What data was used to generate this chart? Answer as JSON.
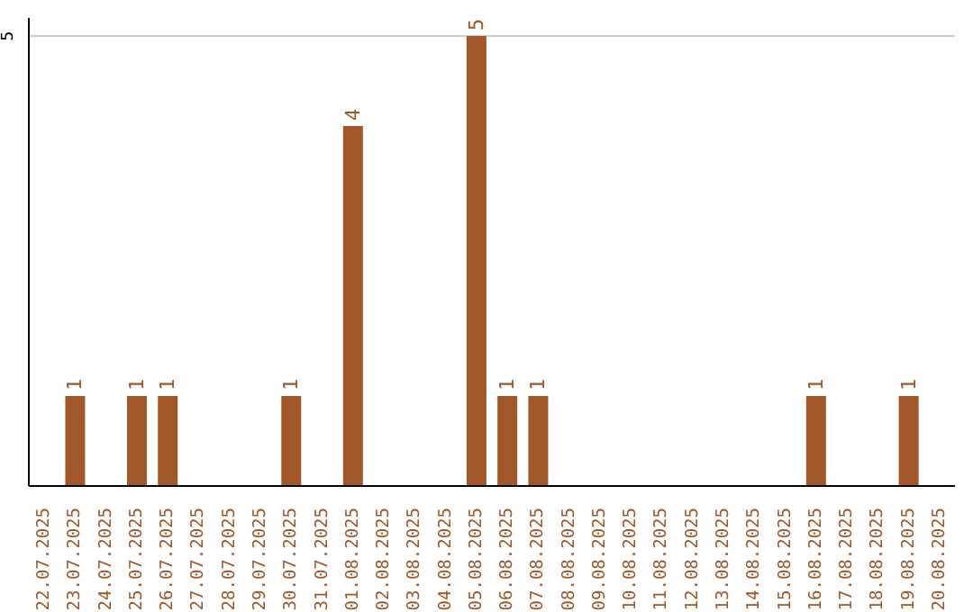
{
  "chart_data": {
    "type": "bar",
    "categories": [
      "22.07.2025",
      "23.07.2025",
      "24.07.2025",
      "25.07.2025",
      "26.07.2025",
      "27.07.2025",
      "28.07.2025",
      "29.07.2025",
      "30.07.2025",
      "31.07.2025",
      "01.08.2025",
      "02.08.2025",
      "03.08.2025",
      "04.08.2025",
      "05.08.2025",
      "06.08.2025",
      "07.08.2025",
      "08.08.2025",
      "09.08.2025",
      "10.08.2025",
      "11.08.2025",
      "12.08.2025",
      "13.08.2025",
      "14.08.2025",
      "15.08.2025",
      "16.08.2025",
      "17.08.2025",
      "18.08.2025",
      "19.08.2025",
      "20.08.2025"
    ],
    "values": [
      0,
      1,
      0,
      1,
      1,
      0,
      0,
      0,
      1,
      0,
      4,
      0,
      0,
      0,
      5,
      1,
      1,
      0,
      0,
      0,
      0,
      0,
      0,
      0,
      0,
      1,
      0,
      0,
      1,
      0
    ],
    "value_labels": [
      null,
      "1",
      null,
      "1",
      "1",
      null,
      null,
      null,
      "1",
      null,
      "4",
      null,
      null,
      null,
      "5",
      "1",
      "1",
      null,
      null,
      null,
      null,
      null,
      null,
      null,
      null,
      "1",
      null,
      null,
      "1",
      null
    ],
    "color": "#a0572a",
    "ylim": [
      0,
      5.2
    ],
    "yticks": [
      5
    ],
    "grid": "y"
  }
}
